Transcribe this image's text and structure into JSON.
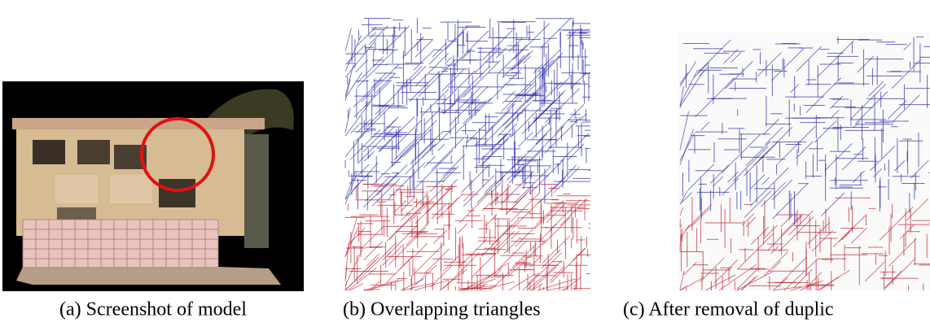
{
  "figure": {
    "panels": [
      {
        "caption": "(a) Screenshot of model"
      },
      {
        "caption": "(b) Overlapping triangles"
      },
      {
        "caption": "(c) After removal of duplic"
      }
    ]
  }
}
